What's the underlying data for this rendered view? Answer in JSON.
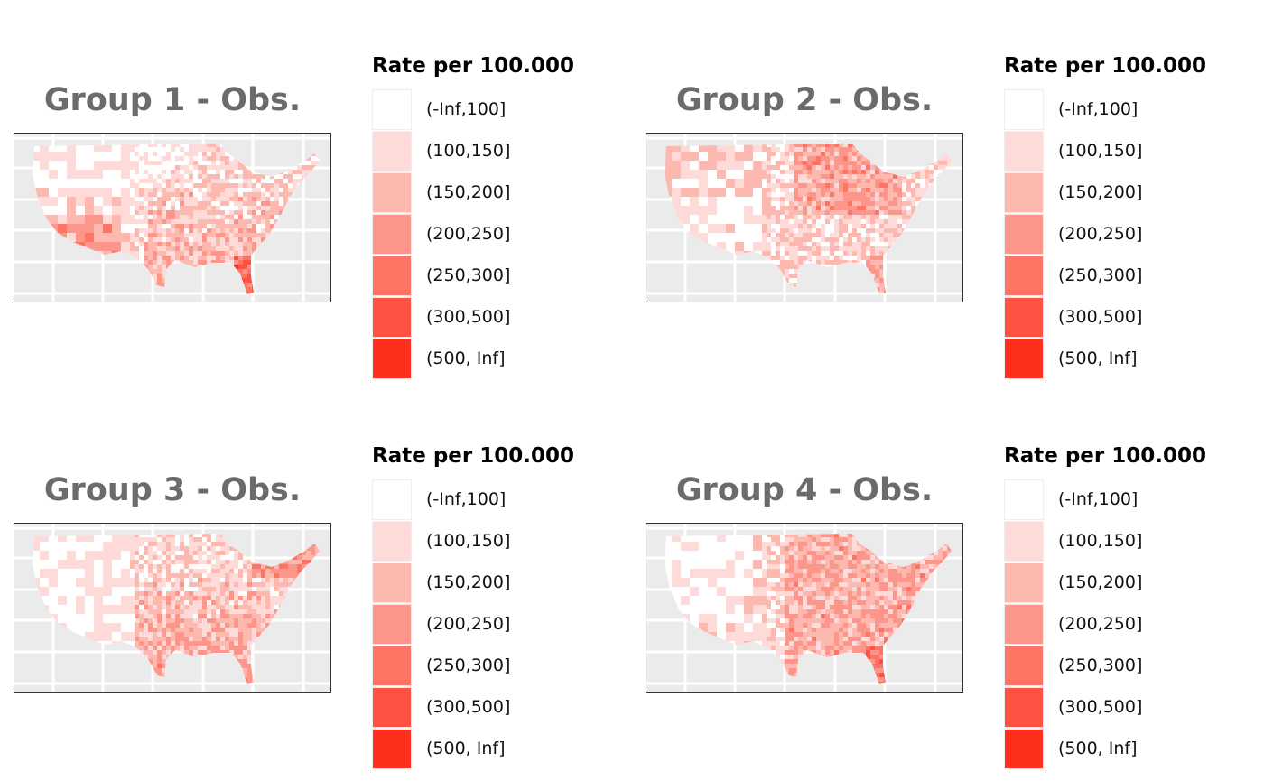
{
  "legend": {
    "title": "Rate per 100.000",
    "items": [
      {
        "label": "(-Inf,100]",
        "color": "#ffffff"
      },
      {
        "label": "(100,150]",
        "color": "#fedad8"
      },
      {
        "label": "(150,200]",
        "color": "#fdb8b0"
      },
      {
        "label": "(200,250]",
        "color": "#fc968a"
      },
      {
        "label": "(250,300]",
        "color": "#fd7464"
      },
      {
        "label": "(300,500]",
        "color": "#fd5141"
      },
      {
        "label": "(500, Inf]",
        "color": "#fe2f1d"
      }
    ]
  },
  "panels": [
    {
      "title": "Group 1 - Obs."
    },
    {
      "title": "Group 2 - Obs."
    },
    {
      "title": "Group 3 - Obs."
    },
    {
      "title": "Group 4 - Obs."
    }
  ],
  "panel_background": "#ebebeb",
  "grid_color": "#ffffff"
}
